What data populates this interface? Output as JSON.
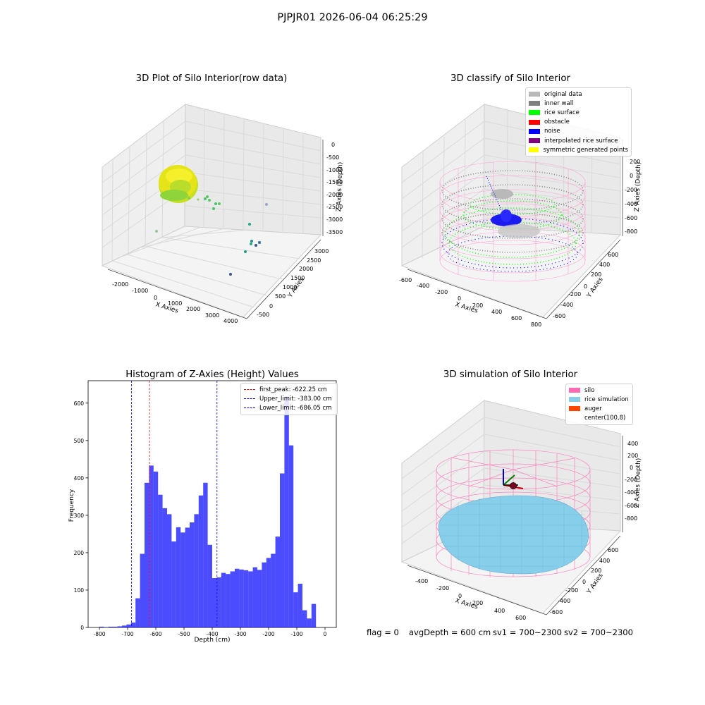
{
  "figure": {
    "suptitle": "PJPJR01 2026-06-04 06:25:29",
    "footer": {
      "flag": "flag = 0",
      "avg_depth": "avgDepth = 600 cm",
      "sv1": "sv1 = 700~2300",
      "sv2": "sv2 = 700~2300"
    }
  },
  "panels": {
    "raw": {
      "title": "3D Plot of Silo Interior(row data)",
      "xlabel": "X Axies",
      "ylabel": "Y Axies",
      "zlabel": "Z Axies (Depth)",
      "xticks": [
        "-2000",
        "-1000",
        "0",
        "1000",
        "2000",
        "3000",
        "4000"
      ],
      "yticks": [
        "-500",
        "0",
        "500",
        "1000",
        "1500",
        "2000",
        "2500",
        "3000"
      ],
      "zticks": [
        "0",
        "-500",
        "-1000",
        "-1500",
        "-2000",
        "-2500",
        "-3000",
        "-3500"
      ],
      "colors": {
        "ring_main": "#d8e21a",
        "ring_dark": "#8fd43a",
        "scatter": [
          "#5ec962",
          "#21918c",
          "#3b528b",
          "#440154",
          "#7fc97f"
        ]
      }
    },
    "classify": {
      "title": "3D classify of Silo Interior",
      "xlabel": "X Axies",
      "ylabel": "Y Axies",
      "zlabel": "Z Axies (Depth)",
      "xticks": [
        "-600",
        "-400",
        "-200",
        "0",
        "200",
        "400",
        "600",
        "800"
      ],
      "yticks": [
        "-600",
        "-400",
        "-200",
        "0",
        "200",
        "400",
        "600"
      ],
      "zticks": [
        "200",
        "0",
        "-200",
        "-400",
        "-600",
        "-800"
      ],
      "legend": [
        {
          "label": "original data",
          "color": "#b8b8b8"
        },
        {
          "label": "inner wall",
          "color": "#808080"
        },
        {
          "label": "rice surface",
          "color": "#00ff00"
        },
        {
          "label": "obstacle",
          "color": "#ff0000"
        },
        {
          "label": "noise",
          "color": "#0000ff"
        },
        {
          "label": "interpolated rice surface",
          "color": "#800080"
        },
        {
          "label": "symmetric generated points",
          "color": "#ffff00"
        }
      ]
    },
    "simulation": {
      "title": "3D simulation of Silo Interior",
      "xlabel": "X Axies",
      "ylabel": "Y Axies",
      "zlabel": "Z Axies (Depth)",
      "xticks": [
        "-400",
        "-200",
        "0",
        "200",
        "400",
        "600"
      ],
      "yticks": [
        "-600",
        "-400",
        "-200",
        "0",
        "200",
        "400",
        "600"
      ],
      "zticks": [
        "400",
        "200",
        "0",
        "-200",
        "-400",
        "-600",
        "-800"
      ],
      "legend": [
        {
          "label": "silo",
          "color": "#ff69b4"
        },
        {
          "label": "rice simulation",
          "color": "#87ceeb"
        },
        {
          "label": "auger",
          "color": "#ff4500"
        },
        {
          "label": "center(100,8)",
          "color": "#ffffff"
        }
      ]
    }
  },
  "chart_data": [
    {
      "type": "bar",
      "title": "Histogram of Z-Axies (Height) Values",
      "xlabel": "Depth (cm)",
      "ylabel": "Frequency",
      "xlim": [
        -840,
        40
      ],
      "ylim": [
        0,
        660
      ],
      "xticks": [
        -800,
        -700,
        -600,
        -500,
        -400,
        -300,
        -200,
        -100,
        0
      ],
      "yticks": [
        0,
        100,
        200,
        300,
        400,
        500,
        600
      ],
      "bin_start": -800,
      "bin_width": 16,
      "values": [
        2,
        1,
        2,
        2,
        3,
        5,
        8,
        13,
        78,
        197,
        387,
        433,
        417,
        355,
        319,
        303,
        230,
        268,
        254,
        267,
        281,
        303,
        353,
        387,
        221,
        132,
        134,
        146,
        143,
        150,
        157,
        155,
        153,
        150,
        161,
        154,
        174,
        186,
        197,
        243,
        412,
        618,
        487,
        94,
        117,
        46,
        24,
        63
      ],
      "bar_color": "#0000ff",
      "bar_alpha": 0.7,
      "vlines": [
        {
          "x": -622.25,
          "color": "#ff0000",
          "label": "first_peak: -622.25 cm"
        },
        {
          "x": -383.0,
          "color": "#0000ff",
          "label": "Upper_limit: -383.00 cm"
        },
        {
          "x": -686.05,
          "color": "#0000ff",
          "label": "Lower_limit: -686.05 cm"
        }
      ],
      "legend_position": "top-right"
    }
  ]
}
